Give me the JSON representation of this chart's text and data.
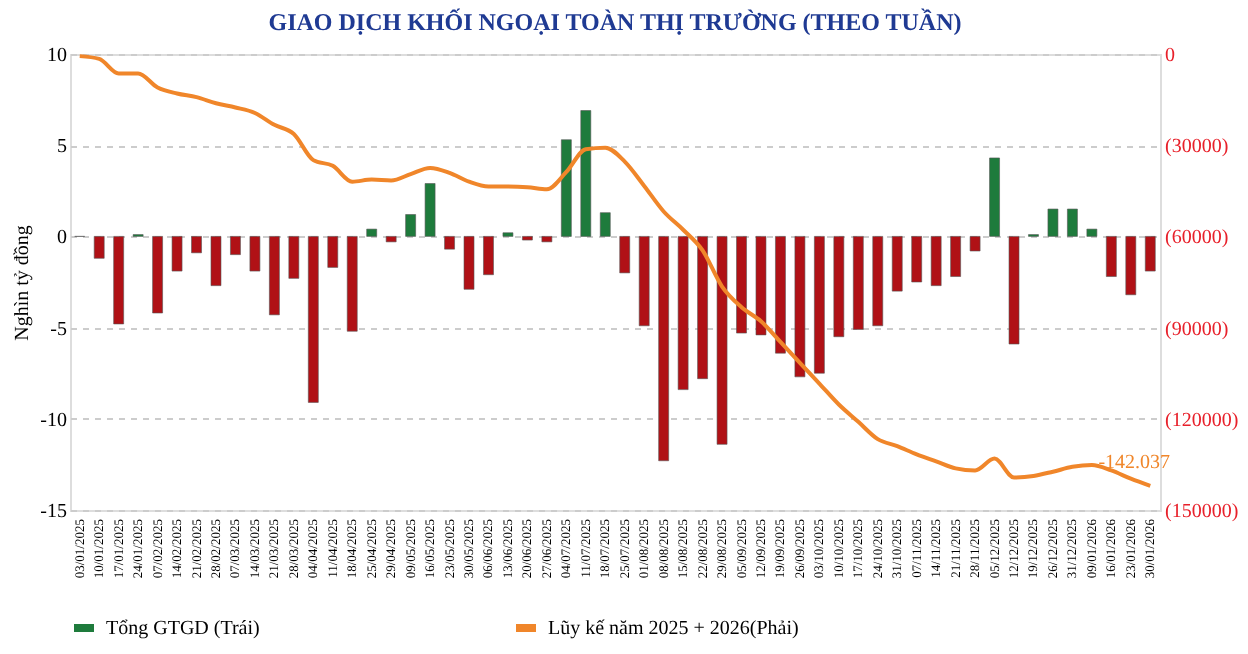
{
  "chart_data": {
    "type": "bar",
    "title": "GIAO DỊCH KHỐI NGOẠI TOÀN THỊ TRƯỜNG (THEO TUẦN)",
    "ylabel": "Nghìn tỷ đồng",
    "categories": [
      "03/01/2025",
      "10/01/2025",
      "17/01/2025",
      "24/01/2025",
      "07/02/2025",
      "14/02/2025",
      "21/02/2025",
      "28/02/2025",
      "07/03/2025",
      "14/03/2025",
      "21/03/2025",
      "28/03/2025",
      "04/04/2025",
      "11/04/2025",
      "18/04/2025",
      "25/04/2025",
      "29/04/2025",
      "09/05/2025",
      "16/05/2025",
      "23/05/2025",
      "30/05/2025",
      "06/06/2025",
      "13/06/2025",
      "20/06/2025",
      "27/06/2025",
      "04/07/2025",
      "11/07/2025",
      "18/07/2025",
      "25/07/2025",
      "01/08/2025",
      "08/08/2025",
      "15/08/2025",
      "22/08/2025",
      "29/08/2025",
      "05/09/2025",
      "12/09/2025",
      "19/09/2025",
      "26/09/2025",
      "03/10/2025",
      "10/10/2025",
      "17/10/2025",
      "24/10/2025",
      "31/10/2025",
      "07/11/2025",
      "14/11/2025",
      "21/11/2025",
      "28/11/2025",
      "05/12/2025",
      "12/12/2025",
      "19/12/2025",
      "26/12/2025",
      "31/12/2025",
      "09/01/2026",
      "16/01/2026",
      "23/01/2026",
      "30/01/2026"
    ],
    "series": [
      {
        "name": "Tổng GTGD (Trái)",
        "color": "#1e7b3c",
        "values": [
          0,
          -1.2,
          -4.8,
          0.1,
          -4.2,
          -1.9,
          -0.9,
          -2.7,
          -1.0,
          -1.9,
          -4.3,
          -2.3,
          -9.1,
          -1.7,
          -5.2,
          0.4,
          -0.3,
          1.2,
          2.9,
          -0.7,
          -2.9,
          -2.1,
          0.2,
          -0.2,
          -0.3,
          5.3,
          6.9,
          1.3,
          -2.0,
          -4.9,
          -12.3,
          -8.4,
          -7.8,
          -11.4,
          -5.3,
          -5.4,
          -6.4,
          -7.7,
          -7.5,
          -5.5,
          -5.1,
          -4.9,
          -3.0,
          -2.5,
          -2.7,
          -2.2,
          -0.8,
          4.3,
          -5.9,
          0.1,
          1.5,
          1.5,
          0.4,
          -2.2,
          -3.2,
          -1.9
        ],
        "colors": [
          "#1e7b3c",
          "#b01116",
          "#b01116",
          "#1e7b3c",
          "#b01116",
          "#b01116",
          "#b01116",
          "#b01116",
          "#b01116",
          "#b01116",
          "#b01116",
          "#b01116",
          "#b01116",
          "#b01116",
          "#b01116",
          "#1e7b3c",
          "#b01116",
          "#1e7b3c",
          "#1e7b3c",
          "#b01116",
          "#b01116",
          "#b01116",
          "#1e7b3c",
          "#b01116",
          "#b01116",
          "#1e7b3c",
          "#1e7b3c",
          "#1e7b3c",
          "#b01116",
          "#b01116",
          "#b01116",
          "#b01116",
          "#b01116",
          "#b01116",
          "#b01116",
          "#b01116",
          "#b01116",
          "#b01116",
          "#b01116",
          "#b01116",
          "#b01116",
          "#b01116",
          "#b01116",
          "#b01116",
          "#b01116",
          "#b01116",
          "#b01116",
          "#1e7b3c",
          "#b01116",
          "#1e7b3c",
          "#1e7b3c",
          "#1e7b3c",
          "#1e7b3c",
          "#b01116",
          "#b01116",
          "#b01116"
        ]
      },
      {
        "name": "Lũy kế năm 2025 + 2026(Phải)",
        "type": "line",
        "axis": "y2",
        "color": "#f0862a",
        "values": [
          -700,
          -1600,
          -6400,
          -6400,
          -11000,
          -13000,
          -14200,
          -16200,
          -17600,
          -19400,
          -23300,
          -26300,
          -34900,
          -36800,
          -42000,
          -41300,
          -41600,
          -39500,
          -37500,
          -39100,
          -42000,
          -43600,
          -43600,
          -43800,
          -44500,
          -38800,
          -31300,
          -30800,
          -35400,
          -43400,
          -51800,
          -57800,
          -64600,
          -76500,
          -83300,
          -87900,
          -94700,
          -101600,
          -108400,
          -115300,
          -121000,
          -126700,
          -129000,
          -131700,
          -134000,
          -136300,
          -137000,
          -133100,
          -139300,
          -138800,
          -137400,
          -135800,
          -135200,
          -137000,
          -139700,
          -142037
        ]
      }
    ],
    "ylim": [
      -15,
      10
    ],
    "yticks": [
      -15,
      -10,
      -5,
      0,
      5,
      10
    ],
    "y2lim": [
      -150000,
      0
    ],
    "y2ticks": [
      {
        "value": -150000,
        "label": "(150000)"
      },
      {
        "value": -120000,
        "label": "(120000)"
      },
      {
        "value": -90000,
        "label": "(90000)"
      },
      {
        "value": -60000,
        "label": "(60000)"
      },
      {
        "value": -30000,
        "label": "(30000)"
      },
      0
    ],
    "annotations": [
      "-142.037"
    ],
    "grid": "y",
    "legend": "bottom"
  }
}
